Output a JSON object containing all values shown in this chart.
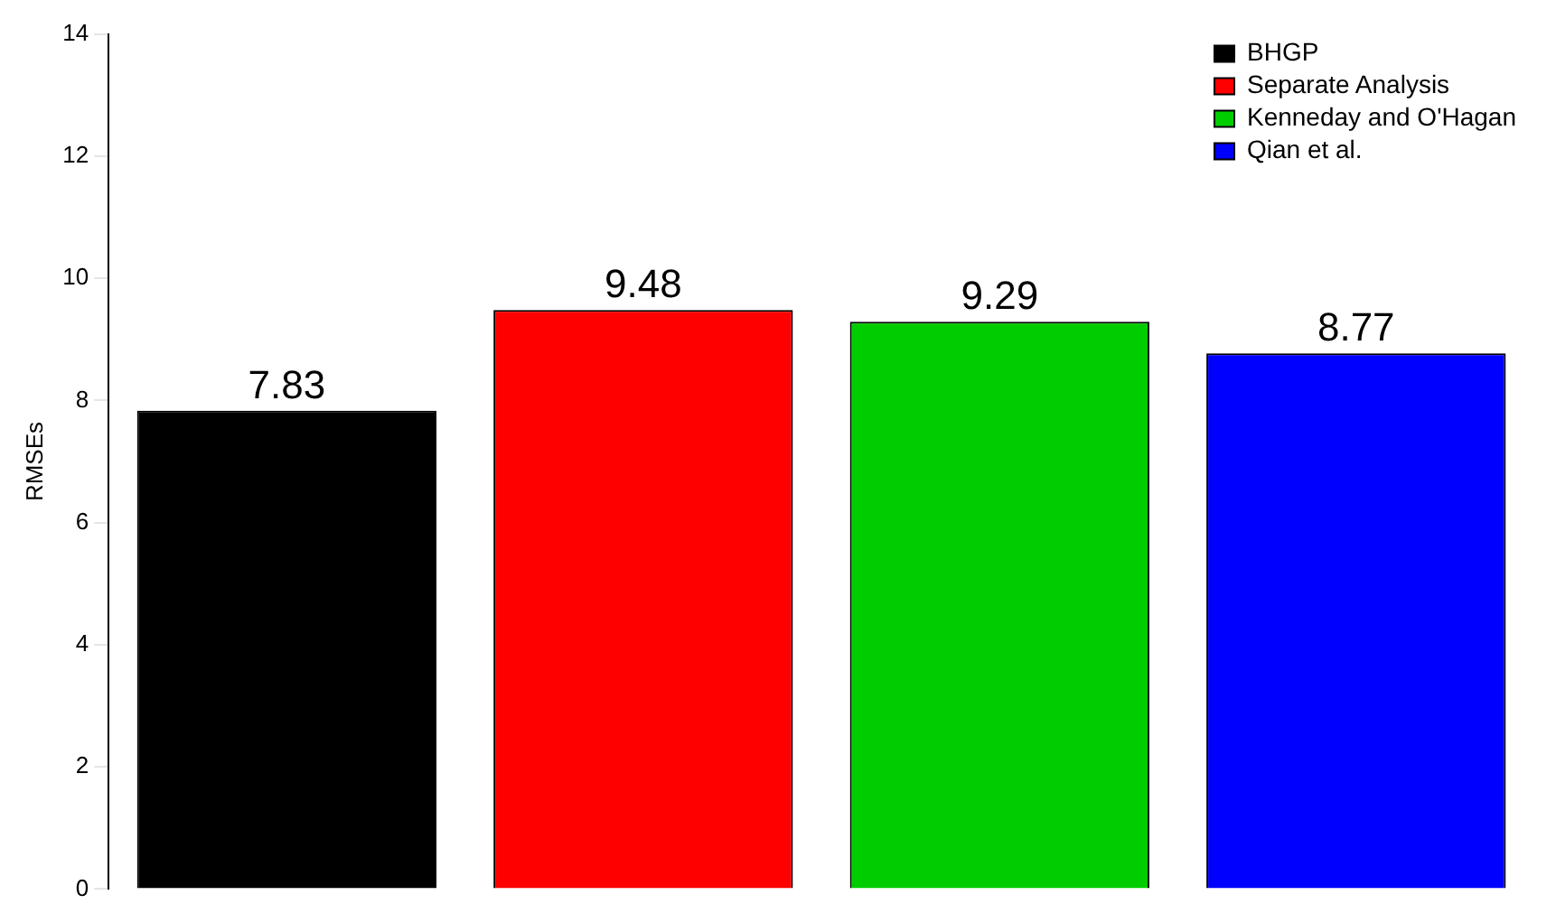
{
  "chart_data": {
    "type": "bar",
    "ylabel": "RMSEs",
    "categories": [
      null
    ],
    "series": [
      {
        "name": "BHGP",
        "color": "#000000",
        "values": [
          7.83
        ]
      },
      {
        "name": "Separate Analysis",
        "color": "#ff0000",
        "values": [
          9.48
        ]
      },
      {
        "name": "Kenneday and O'Hagan",
        "color": "#00cd00",
        "values": [
          9.29
        ]
      },
      {
        "name": "Qian et al.",
        "color": "#0000ff",
        "values": [
          8.77
        ]
      }
    ],
    "ylim": [
      0,
      14
    ],
    "yticks": [
      0,
      2,
      4,
      6,
      8,
      10,
      12,
      14
    ],
    "data_labels": true,
    "legend": "top right",
    "grid": false
  }
}
